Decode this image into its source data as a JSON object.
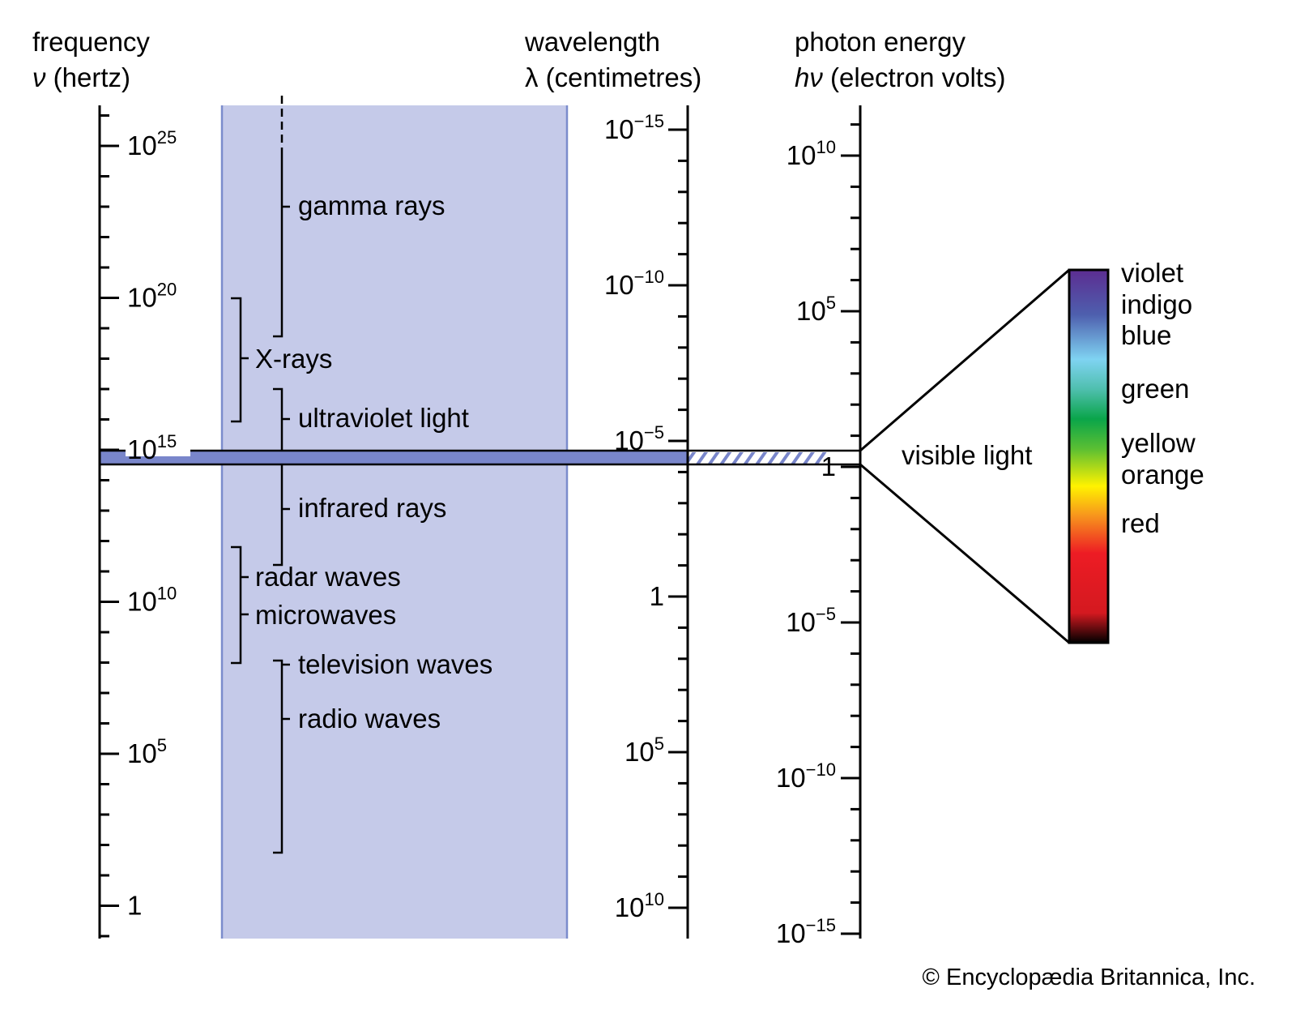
{
  "headers": {
    "frequency": {
      "line1": "frequency",
      "sym": "ν",
      "unit": " (hertz)"
    },
    "wavelength": {
      "line1": "wavelength",
      "sym": "λ",
      "unit": " (centimetres)"
    },
    "energy": {
      "line1": "photon energy",
      "sym": "hν",
      "unit": " (electron volts)"
    }
  },
  "frequency_ticks": [
    {
      "base": "10",
      "exp": "25"
    },
    {
      "base": "10",
      "exp": "20"
    },
    {
      "base": "10",
      "exp": "15"
    },
    {
      "base": "10",
      "exp": "10"
    },
    {
      "base": "10",
      "exp": "5"
    },
    {
      "base": "1",
      "exp": ""
    }
  ],
  "wavelength_ticks": [
    {
      "base": "10",
      "exp": "−15"
    },
    {
      "base": "10",
      "exp": "−10"
    },
    {
      "base": "10",
      "exp": "−5"
    },
    {
      "base": "1",
      "exp": ""
    },
    {
      "base": "10",
      "exp": "5"
    },
    {
      "base": "10",
      "exp": "10"
    }
  ],
  "energy_ticks": [
    {
      "base": "10",
      "exp": "10"
    },
    {
      "base": "10",
      "exp": "5"
    },
    {
      "base": "1",
      "exp": ""
    },
    {
      "base": "10",
      "exp": "−5"
    },
    {
      "base": "10",
      "exp": "−10"
    },
    {
      "base": "10",
      "exp": "−15"
    }
  ],
  "regions": {
    "gamma": "gamma rays",
    "xrays": "X-rays",
    "uv": "ultraviolet light",
    "ir": "infrared rays",
    "radar": "radar waves",
    "micro": "microwaves",
    "tv": "television waves",
    "radio": "radio waves",
    "visible": "visible light"
  },
  "colors": [
    "violet",
    "indigo",
    "blue",
    "green",
    "yellow",
    "orange",
    "red"
  ],
  "palette": {
    "band": "#c5cae9",
    "band_edge": "#7b8ccc",
    "visible_band": "#7986cb"
  },
  "credit": "© Encyclopædia Britannica, Inc."
}
